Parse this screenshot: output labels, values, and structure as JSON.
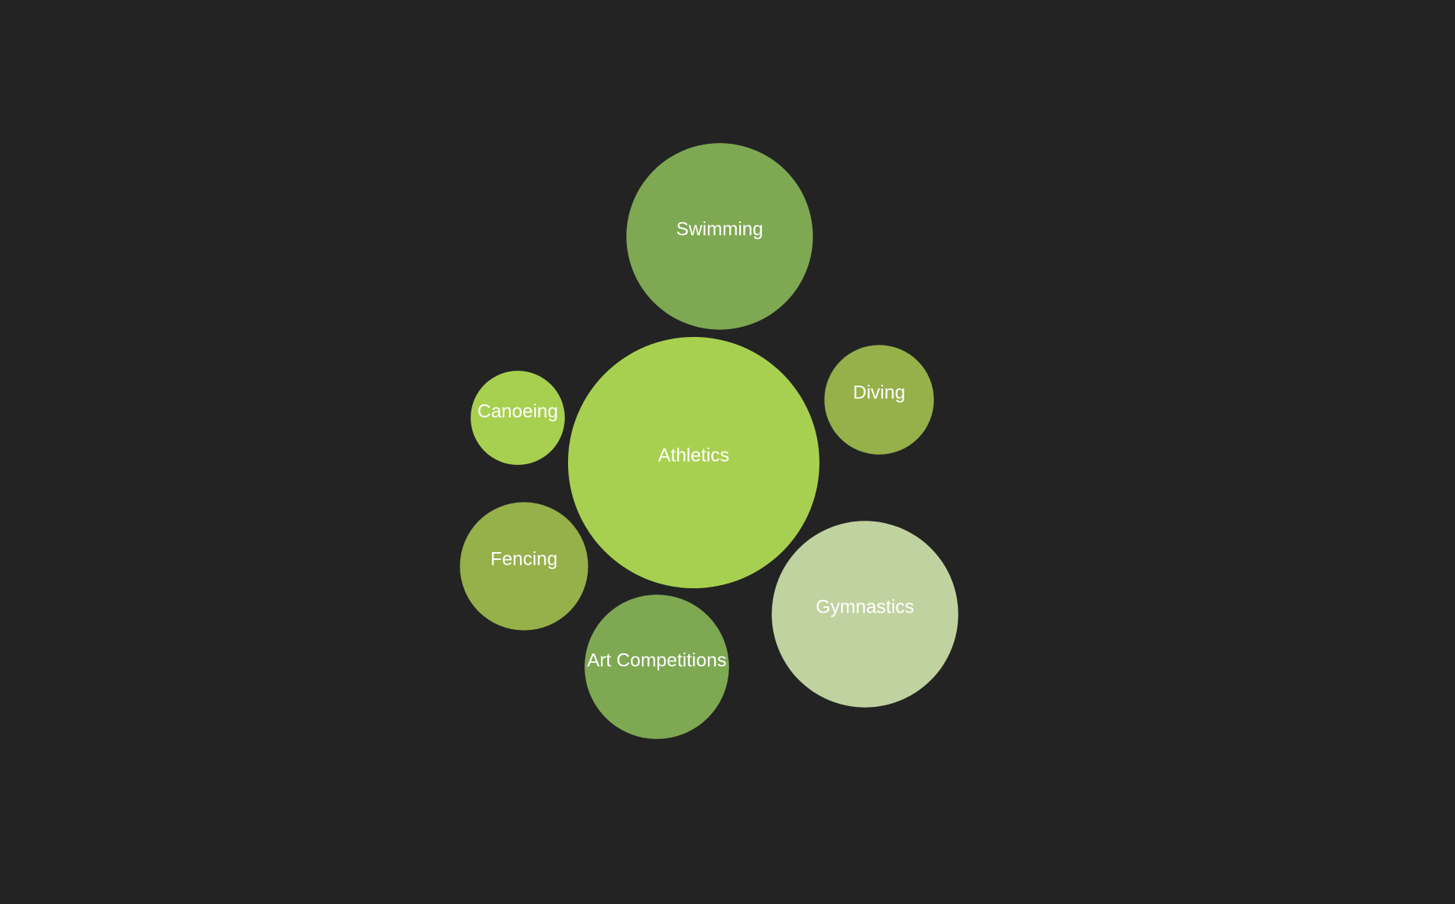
{
  "background_color": "#232323",
  "label_color": "#ffffff",
  "chart_data": {
    "type": "bubble",
    "title": "",
    "value_note": "relative bubble size (estimated from area)",
    "series": [
      {
        "name": "Athletics",
        "value": 100,
        "color": "#a8d050"
      },
      {
        "name": "Swimming",
        "value": 55,
        "color": "#7ea852"
      },
      {
        "name": "Gymnastics",
        "value": 55,
        "color": "#c0d2a0"
      },
      {
        "name": "Art Competitions",
        "value": 33,
        "color": "#7ea852"
      },
      {
        "name": "Fencing",
        "value": 26,
        "color": "#96b04a"
      },
      {
        "name": "Diving",
        "value": 19,
        "color": "#96b04a"
      },
      {
        "name": "Canoeing",
        "value": 14,
        "color": "#a8d050"
      }
    ]
  }
}
